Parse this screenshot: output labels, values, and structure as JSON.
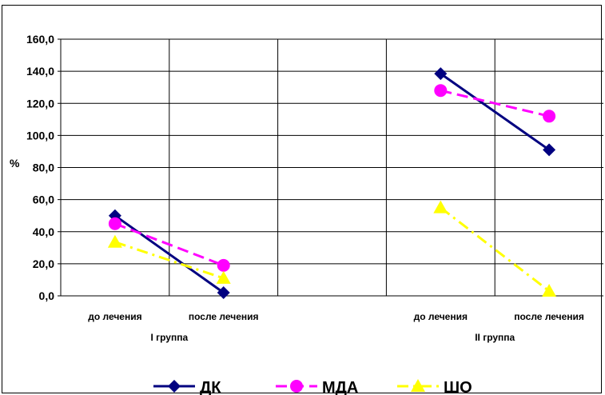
{
  "chart_data": {
    "type": "line",
    "ylabel": "%",
    "ylim": [
      0,
      160
    ],
    "ytick_step": 20,
    "ytick_labels": [
      "0,0",
      "20,0",
      "40,0",
      "60,0",
      "80,0",
      "100,0",
      "120,0",
      "140,0",
      "160,0"
    ],
    "categories": [
      "до лечения",
      "после лечения",
      "до лечения",
      "после лечения"
    ],
    "groups": [
      {
        "label": "I группа",
        "categories": [
          "до лечения",
          "после лечения"
        ]
      },
      {
        "label": "II группа",
        "categories": [
          "до лечения",
          "после лечения"
        ]
      }
    ],
    "grid": true,
    "legend_position": "bottom",
    "series": [
      {
        "name": "ДК",
        "color": "#000080",
        "dash": "solid",
        "marker": "diamond",
        "segments": [
          [
            50,
            2
          ],
          [
            138.5,
            91
          ]
        ]
      },
      {
        "name": "МДА",
        "color": "#ff00ff",
        "dash": "dashed",
        "marker": "circle",
        "segments": [
          [
            45,
            19
          ],
          [
            128,
            112
          ]
        ]
      },
      {
        "name": "ШО",
        "color": "#ffff00",
        "dash": "dashdot",
        "marker": "triangle",
        "segments": [
          [
            33.5,
            11
          ],
          [
            55,
            3
          ]
        ]
      }
    ]
  }
}
